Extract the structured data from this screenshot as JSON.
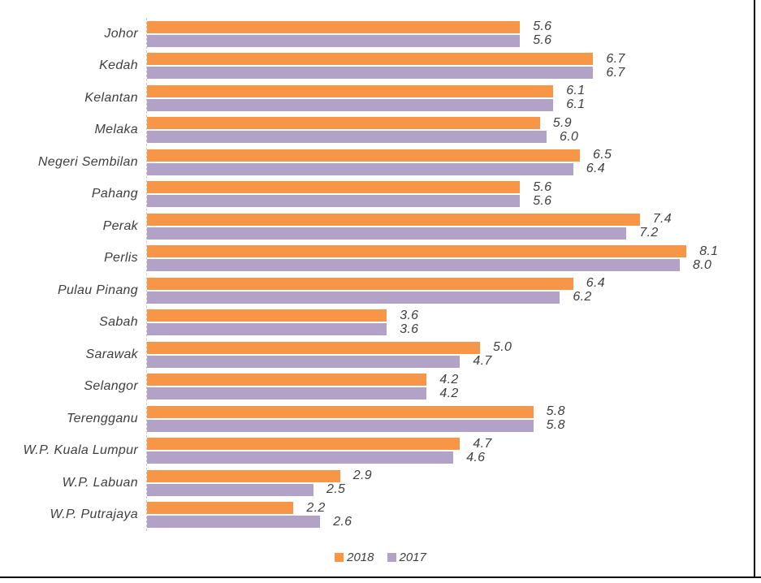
{
  "page": {
    "background": "#ffffff",
    "border_color": "#000000",
    "text_color": "#3f3f3f"
  },
  "chart_data": {
    "type": "bar",
    "orientation": "horizontal",
    "title": "",
    "xlabel": "",
    "ylabel": "",
    "categories": [
      "Johor",
      "Kedah",
      "Kelantan",
      "Melaka",
      "Negeri Sembilan",
      "Pahang",
      "Perak",
      "Perlis",
      "Pulau Pinang",
      "Sabah",
      "Sarawak",
      "Selangor",
      "Terengganu",
      "W.P. Kuala Lumpur",
      "W.P. Labuan",
      "W.P. Putrajaya"
    ],
    "series": [
      {
        "name": "2018",
        "color": "#F79646",
        "values": [
          5.6,
          6.7,
          6.1,
          5.9,
          6.5,
          5.6,
          7.4,
          8.1,
          6.4,
          3.6,
          5.0,
          4.2,
          5.8,
          4.7,
          2.9,
          2.2
        ]
      },
      {
        "name": "2017",
        "color": "#B3A2C7",
        "values": [
          5.6,
          6.7,
          6.1,
          6.0,
          6.4,
          5.6,
          7.2,
          8.0,
          6.2,
          3.6,
          4.7,
          4.2,
          5.8,
          4.6,
          2.5,
          2.6
        ]
      }
    ],
    "value_label_format": "one-decimal",
    "legend_position": "bottom-center",
    "xlim": [
      0,
      8.9
    ],
    "grid": false,
    "axis_line_color": "#c9c9c9"
  }
}
